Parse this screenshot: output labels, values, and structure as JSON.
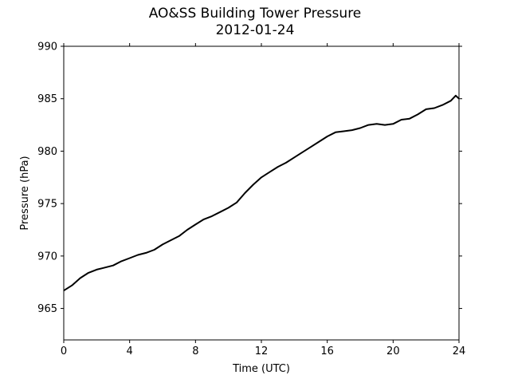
{
  "chart_data": {
    "type": "line",
    "title": "AO&SS Building Tower Pressure",
    "subtitle": "2012-01-24",
    "xlabel": "Time (UTC)",
    "ylabel": "Pressure (hPa)",
    "xlim": [
      0,
      24
    ],
    "ylim": [
      962,
      990
    ],
    "xticks": [
      0,
      4,
      8,
      12,
      16,
      20,
      24
    ],
    "yticks": [
      965,
      970,
      975,
      980,
      985,
      990
    ],
    "grid": false,
    "series": [
      {
        "color": "#000000",
        "x": [
          0,
          0.5,
          1,
          1.5,
          2,
          2.5,
          3,
          3.5,
          4,
          4.5,
          5,
          5.5,
          6,
          6.5,
          7,
          7.5,
          8,
          8.5,
          9,
          9.5,
          10,
          10.5,
          11,
          11.5,
          12,
          12.5,
          13,
          13.5,
          14,
          14.5,
          15,
          15.5,
          16,
          16.5,
          17,
          17.5,
          18,
          18.5,
          19,
          19.5,
          20,
          20.5,
          21,
          21.5,
          22,
          22.5,
          23,
          23.5,
          23.8,
          24
        ],
        "y": [
          966.7,
          967.2,
          967.9,
          968.4,
          968.7,
          968.9,
          969.1,
          969.5,
          969.8,
          970.1,
          970.3,
          970.6,
          971.1,
          971.5,
          971.9,
          972.5,
          973.0,
          973.5,
          973.8,
          974.2,
          974.6,
          975.1,
          976.0,
          976.8,
          977.5,
          978.0,
          978.5,
          978.9,
          979.4,
          979.9,
          980.4,
          980.9,
          981.4,
          981.8,
          981.9,
          982.0,
          982.2,
          982.5,
          982.6,
          982.5,
          982.6,
          983.0,
          983.1,
          983.5,
          984.0,
          984.1,
          984.4,
          984.8,
          985.3,
          985.0
        ]
      }
    ]
  }
}
